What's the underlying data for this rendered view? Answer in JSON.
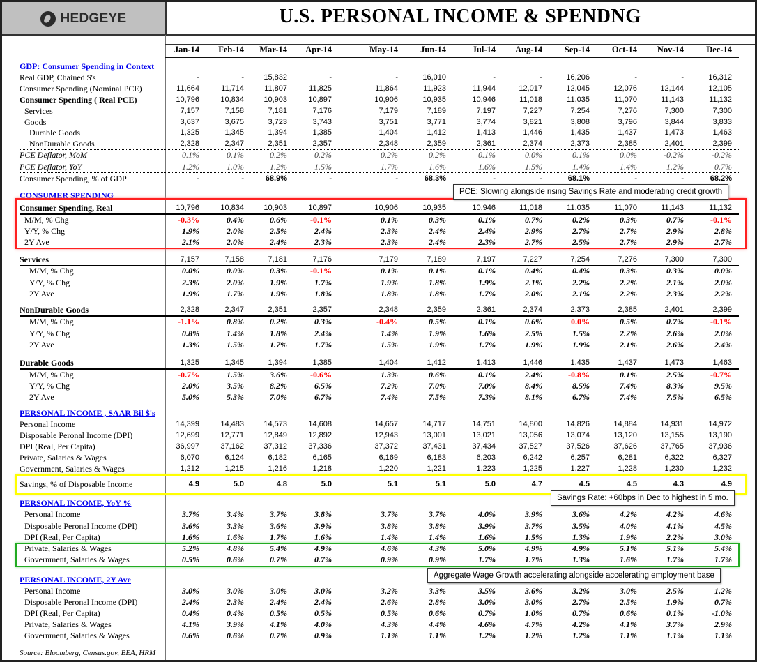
{
  "header": {
    "logo": "HEDGEYE",
    "title": "U.S. PERSONAL INCOME & SPENDNG"
  },
  "months": [
    "Jan-14",
    "Feb-14",
    "Mar-14",
    "Apr-14",
    "May-14",
    "Jun-14",
    "Jul-14",
    "Aug-14",
    "Sep-14",
    "Oct-14",
    "Nov-14",
    "Dec-14"
  ],
  "colors": {
    "negative_highlight": "#ff0000",
    "section_link": "#0000ee",
    "box_consumer": "#ff2020",
    "box_savings": "#ffff00",
    "box_wages": "#22aa22"
  },
  "sections": [
    {
      "title": "GDP: Consumer Spending in Context",
      "rows": [
        {
          "label": "Real GDP, Chained $'s",
          "values": [
            "-",
            "-",
            "15,832",
            "-",
            "-",
            "16,010",
            "-",
            "-",
            "16,206",
            "-",
            "-",
            "16,312"
          ]
        },
        {
          "label": "Consumer Spending (Nominal PCE)",
          "values": [
            "11,664",
            "11,714",
            "11,807",
            "11,825",
            "11,864",
            "11,923",
            "11,944",
            "12,017",
            "12,045",
            "12,076",
            "12,144",
            "12,105"
          ]
        },
        {
          "label": "Consumer Spending ( Real PCE)",
          "values": [
            "10,796",
            "10,834",
            "10,903",
            "10,897",
            "10,906",
            "10,935",
            "10,946",
            "11,018",
            "11,035",
            "11,070",
            "11,143",
            "11,132"
          ]
        },
        {
          "label": "Services",
          "values": [
            "7,157",
            "7,158",
            "7,181",
            "7,176",
            "7,179",
            "7,189",
            "7,197",
            "7,227",
            "7,254",
            "7,276",
            "7,300",
            "7,300"
          ]
        },
        {
          "label": "Goods",
          "values": [
            "3,637",
            "3,675",
            "3,723",
            "3,743",
            "3,751",
            "3,771",
            "3,774",
            "3,821",
            "3,808",
            "3,796",
            "3,844",
            "3,833"
          ]
        },
        {
          "label": "Durable Goods",
          "values": [
            "1,325",
            "1,345",
            "1,394",
            "1,385",
            "1,404",
            "1,412",
            "1,413",
            "1,446",
            "1,435",
            "1,437",
            "1,473",
            "1,463"
          ]
        },
        {
          "label": "NonDurable Goods",
          "values": [
            "2,328",
            "2,347",
            "2,351",
            "2,357",
            "2,348",
            "2,359",
            "2,361",
            "2,374",
            "2,373",
            "2,385",
            "2,401",
            "2,399"
          ]
        },
        {
          "label": "PCE Deflator, MoM",
          "values": [
            "0.1%",
            "0.1%",
            "0.2%",
            "0.2%",
            "0.2%",
            "0.2%",
            "0.1%",
            "0.0%",
            "0.1%",
            "0.0%",
            "-0.2%",
            "-0.2%"
          ]
        },
        {
          "label": "PCE Deflator, YoY",
          "values": [
            "1.2%",
            "1.0%",
            "1.2%",
            "1.5%",
            "1.7%",
            "1.6%",
            "1.6%",
            "1.5%",
            "1.4%",
            "1.4%",
            "1.2%",
            "0.7%"
          ]
        },
        {
          "label": "Consumer Spending, % of GDP",
          "values": [
            "-",
            "-",
            "68.9%",
            "-",
            "-",
            "68.3%",
            "-",
            "-",
            "68.1%",
            "-",
            "-",
            "68.2%"
          ]
        }
      ]
    },
    {
      "title": "CONSUMER SPENDING",
      "rows": [
        {
          "label": "Consumer Spending, Real",
          "values": [
            "10,796",
            "10,834",
            "10,903",
            "10,897",
            "10,906",
            "10,935",
            "10,946",
            "11,018",
            "11,035",
            "11,070",
            "11,143",
            "11,132"
          ]
        },
        {
          "label": "M/M, % Chg",
          "values": [
            "-0.3%",
            "0.4%",
            "0.6%",
            "-0.1%",
            "0.1%",
            "0.3%",
            "0.1%",
            "0.7%",
            "0.2%",
            "0.3%",
            "0.7%",
            "-0.1%"
          ],
          "red": [
            0,
            3,
            11
          ]
        },
        {
          "label": "Y/Y, % Chg",
          "values": [
            "1.9%",
            "2.0%",
            "2.5%",
            "2.4%",
            "2.3%",
            "2.4%",
            "2.4%",
            "2.9%",
            "2.7%",
            "2.7%",
            "2.9%",
            "2.8%"
          ]
        },
        {
          "label": "2Y Ave",
          "values": [
            "2.1%",
            "2.0%",
            "2.4%",
            "2.3%",
            "2.3%",
            "2.4%",
            "2.3%",
            "2.7%",
            "2.5%",
            "2.7%",
            "2.9%",
            "2.7%"
          ]
        },
        {
          "label": "Services",
          "values": [
            "7,157",
            "7,158",
            "7,181",
            "7,176",
            "7,179",
            "7,189",
            "7,197",
            "7,227",
            "7,254",
            "7,276",
            "7,300",
            "7,300"
          ]
        },
        {
          "label": "M/M, % Chg",
          "values": [
            "0.0%",
            "0.0%",
            "0.3%",
            "-0.1%",
            "0.1%",
            "0.1%",
            "0.1%",
            "0.4%",
            "0.4%",
            "0.3%",
            "0.3%",
            "0.0%"
          ],
          "red": [
            3
          ]
        },
        {
          "label": "Y/Y, % Chg",
          "values": [
            "2.3%",
            "2.0%",
            "1.9%",
            "1.7%",
            "1.9%",
            "1.8%",
            "1.9%",
            "2.1%",
            "2.2%",
            "2.2%",
            "2.1%",
            "2.0%"
          ]
        },
        {
          "label": "2Y Ave",
          "values": [
            "1.9%",
            "1.7%",
            "1.9%",
            "1.8%",
            "1.8%",
            "1.8%",
            "1.7%",
            "2.0%",
            "2.1%",
            "2.2%",
            "2.3%",
            "2.2%"
          ]
        },
        {
          "label": "NonDurable Goods",
          "values": [
            "2,328",
            "2,347",
            "2,351",
            "2,357",
            "2,348",
            "2,359",
            "2,361",
            "2,374",
            "2,373",
            "2,385",
            "2,401",
            "2,399"
          ]
        },
        {
          "label": "M/M, % Chg",
          "values": [
            "-1.1%",
            "0.8%",
            "0.2%",
            "0.3%",
            "-0.4%",
            "0.5%",
            "0.1%",
            "0.6%",
            "0.0%",
            "0.5%",
            "0.7%",
            "-0.1%"
          ],
          "red": [
            0,
            4,
            8,
            11
          ]
        },
        {
          "label": "Y/Y, % Chg",
          "values": [
            "0.8%",
            "1.4%",
            "1.8%",
            "2.4%",
            "1.4%",
            "1.9%",
            "1.6%",
            "2.5%",
            "1.5%",
            "2.2%",
            "2.6%",
            "2.0%"
          ]
        },
        {
          "label": "2Y Ave",
          "values": [
            "1.3%",
            "1.5%",
            "1.7%",
            "1.7%",
            "1.5%",
            "1.9%",
            "1.7%",
            "1.9%",
            "1.9%",
            "2.1%",
            "2.6%",
            "2.4%"
          ]
        },
        {
          "label": "Durable Goods",
          "values": [
            "1,325",
            "1,345",
            "1,394",
            "1,385",
            "1,404",
            "1,412",
            "1,413",
            "1,446",
            "1,435",
            "1,437",
            "1,473",
            "1,463"
          ]
        },
        {
          "label": "M/M, % Chg",
          "values": [
            "-0.7%",
            "1.5%",
            "3.6%",
            "-0.6%",
            "1.3%",
            "0.6%",
            "0.1%",
            "2.4%",
            "-0.8%",
            "0.1%",
            "2.5%",
            "-0.7%"
          ],
          "red": [
            0,
            3,
            8,
            11
          ]
        },
        {
          "label": "Y/Y, % Chg",
          "values": [
            "2.0%",
            "3.5%",
            "8.2%",
            "6.5%",
            "7.2%",
            "7.0%",
            "7.0%",
            "8.4%",
            "8.5%",
            "7.4%",
            "8.3%",
            "9.5%"
          ]
        },
        {
          "label": "2Y Ave",
          "values": [
            "5.0%",
            "5.3%",
            "7.0%",
            "6.7%",
            "7.4%",
            "7.5%",
            "7.3%",
            "8.1%",
            "6.7%",
            "7.4%",
            "7.5%",
            "6.5%"
          ]
        }
      ]
    },
    {
      "title": "PERSONAL INCOME , SAAR Bil $'s",
      "rows": [
        {
          "label": "Personal Income",
          "values": [
            "14,399",
            "14,483",
            "14,573",
            "14,608",
            "14,657",
            "14,717",
            "14,751",
            "14,800",
            "14,826",
            "14,884",
            "14,931",
            "14,972"
          ]
        },
        {
          "label": "Disposable Peronal Income (DPI)",
          "values": [
            "12,699",
            "12,771",
            "12,849",
            "12,892",
            "12,943",
            "13,001",
            "13,021",
            "13,056",
            "13,074",
            "13,120",
            "13,155",
            "13,190"
          ]
        },
        {
          "label": "DPI (Real, Per Capita)",
          "values": [
            "36,997",
            "37,162",
            "37,312",
            "37,336",
            "37,372",
            "37,431",
            "37,434",
            "37,527",
            "37,526",
            "37,626",
            "37,765",
            "37,936"
          ]
        },
        {
          "label": "Private, Salaries & Wages",
          "values": [
            "6,070",
            "6,124",
            "6,182",
            "6,165",
            "6,169",
            "6,183",
            "6,203",
            "6,242",
            "6,257",
            "6,281",
            "6,322",
            "6,327"
          ]
        },
        {
          "label": "Government, Salaries & Wages",
          "values": [
            "1,212",
            "1,215",
            "1,216",
            "1,218",
            "1,220",
            "1,221",
            "1,223",
            "1,225",
            "1,227",
            "1,228",
            "1,230",
            "1,232"
          ]
        },
        {
          "label": "Savings, % of Disposable Income",
          "values": [
            "4.9",
            "5.0",
            "4.8",
            "5.0",
            "5.1",
            "5.1",
            "5.0",
            "4.7",
            "4.5",
            "4.5",
            "4.3",
            "4.9"
          ]
        }
      ]
    },
    {
      "title": "PERSONAL INCOME, YoY %",
      "rows": [
        {
          "label": "Personal Income",
          "values": [
            "3.7%",
            "3.4%",
            "3.7%",
            "3.8%",
            "3.7%",
            "3.7%",
            "4.0%",
            "3.9%",
            "3.6%",
            "4.2%",
            "4.2%",
            "4.6%"
          ]
        },
        {
          "label": "Disposable Peronal Income (DPI)",
          "values": [
            "3.6%",
            "3.3%",
            "3.6%",
            "3.9%",
            "3.8%",
            "3.8%",
            "3.9%",
            "3.7%",
            "3.5%",
            "4.0%",
            "4.1%",
            "4.5%"
          ]
        },
        {
          "label": "DPI (Real, Per Capita)",
          "values": [
            "1.6%",
            "1.6%",
            "1.7%",
            "1.6%",
            "1.4%",
            "1.4%",
            "1.6%",
            "1.5%",
            "1.3%",
            "1.9%",
            "2.2%",
            "3.0%"
          ]
        },
        {
          "label": "Private, Salaries & Wages",
          "values": [
            "5.2%",
            "4.8%",
            "5.4%",
            "4.9%",
            "4.6%",
            "4.3%",
            "5.0%",
            "4.9%",
            "4.9%",
            "5.1%",
            "5.1%",
            "5.4%"
          ]
        },
        {
          "label": "Government, Salaries & Wages",
          "values": [
            "0.5%",
            "0.6%",
            "0.7%",
            "0.7%",
            "0.9%",
            "0.9%",
            "1.7%",
            "1.7%",
            "1.3%",
            "1.6%",
            "1.7%",
            "1.7%"
          ]
        }
      ]
    },
    {
      "title": "PERSONAL INCOME, 2Y Ave",
      "rows": [
        {
          "label": "Personal Income",
          "values": [
            "3.0%",
            "3.0%",
            "3.0%",
            "3.0%",
            "3.2%",
            "3.3%",
            "3.5%",
            "3.6%",
            "3.2%",
            "3.0%",
            "2.5%",
            "1.2%"
          ]
        },
        {
          "label": "Disposable Peronal Income (DPI)",
          "values": [
            "2.4%",
            "2.3%",
            "2.4%",
            "2.4%",
            "2.6%",
            "2.8%",
            "3.0%",
            "3.0%",
            "2.7%",
            "2.5%",
            "1.9%",
            "0.7%"
          ]
        },
        {
          "label": "DPI (Real, Per Capita)",
          "values": [
            "0.4%",
            "0.4%",
            "0.5%",
            "0.5%",
            "0.5%",
            "0.6%",
            "0.7%",
            "1.0%",
            "0.7%",
            "0.6%",
            "0.1%",
            "-1.0%"
          ]
        },
        {
          "label": "Private, Salaries & Wages",
          "values": [
            "4.1%",
            "3.9%",
            "4.1%",
            "4.0%",
            "4.3%",
            "4.4%",
            "4.6%",
            "4.7%",
            "4.2%",
            "4.1%",
            "3.7%",
            "2.9%"
          ]
        },
        {
          "label": "Government, Salaries & Wages",
          "values": [
            "0.6%",
            "0.6%",
            "0.7%",
            "0.9%",
            "1.1%",
            "1.1%",
            "1.2%",
            "1.2%",
            "1.2%",
            "1.1%",
            "1.1%",
            "1.1%"
          ]
        }
      ]
    }
  ],
  "annotations": {
    "pce": "PCE: Slowing alongside rising Savings Rate and moderating credit growth",
    "savings": "Savings Rate: +60bps  in Dec to highest in 5 mo.",
    "wages": "Aggregate Wage Growth accelerating alongside accelerating employment base"
  },
  "source": "Source: Bloomberg, Census.gov, BEA, HRM"
}
